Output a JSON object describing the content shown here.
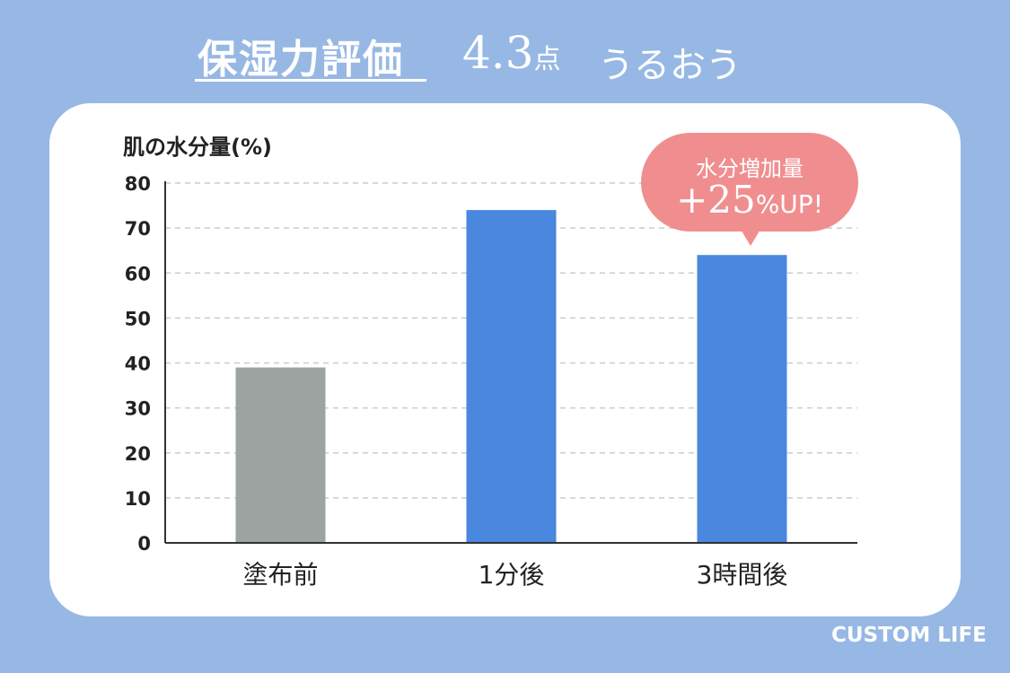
{
  "header": {
    "title": "保湿力評価",
    "score_value": "4.3",
    "score_unit": "点",
    "brand": "うるおう"
  },
  "callout": {
    "line1": "水分増加量",
    "line2": "+25",
    "line2_unit": "%UP!"
  },
  "logo": "CUSTOM LIFE",
  "colors": {
    "background": "#97b8e4",
    "before_bar": "#9ca3a1",
    "after_bar": "#4a87de",
    "callout": "#f08e8f"
  },
  "chart_data": {
    "type": "bar",
    "title": "",
    "ylabel": "肌の水分量(%)",
    "xlabel": "",
    "categories": [
      "塗布前",
      "1分後",
      "3時間後"
    ],
    "values": [
      39,
      74,
      64
    ],
    "bar_colors": [
      "#9ca3a1",
      "#4a87de",
      "#4a87de"
    ],
    "ylim": [
      0,
      80
    ],
    "yticks": [
      0,
      10,
      20,
      30,
      40,
      50,
      60,
      70,
      80
    ],
    "grid": true,
    "legend": "none"
  }
}
